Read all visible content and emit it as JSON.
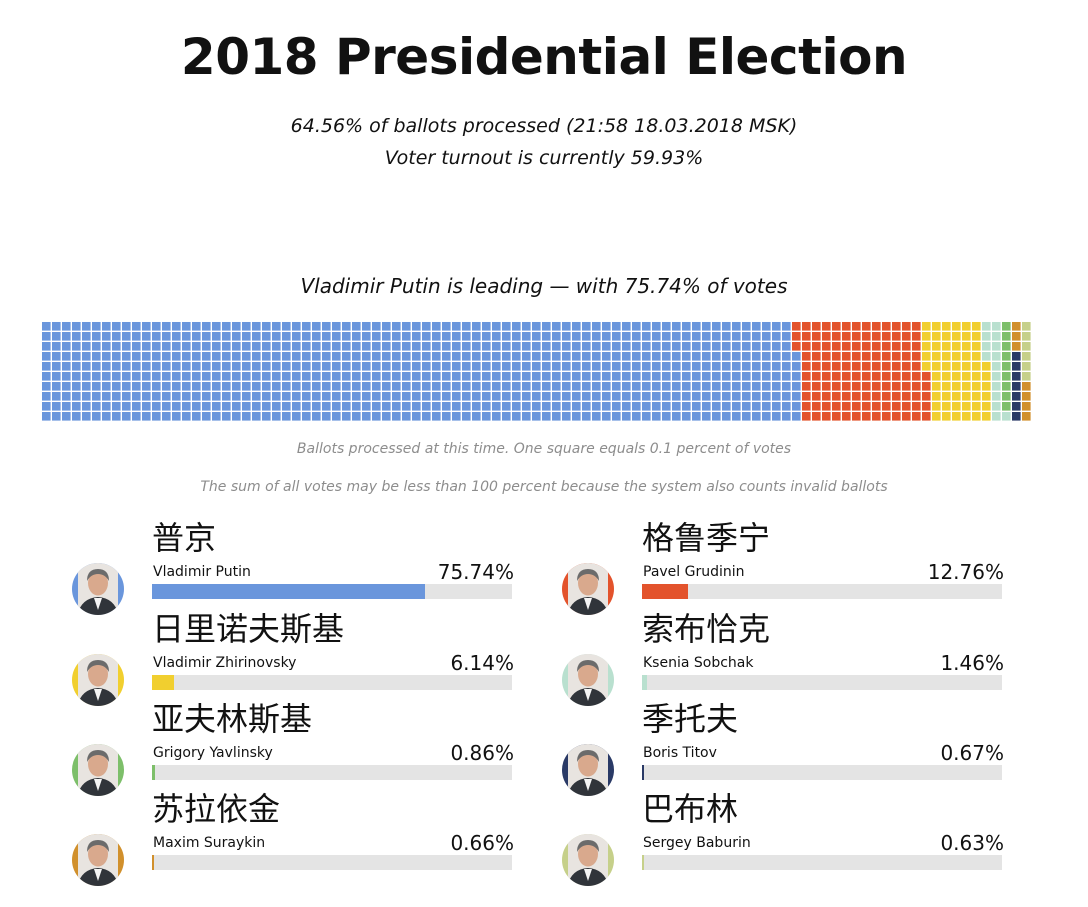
{
  "header": {
    "title": "2018 Presidential Election",
    "processed": "64.56% of ballots processed (21:58 18.03.2018 MSK)",
    "turnout": "Voter turnout is currently 59.93%"
  },
  "chart_data": {
    "type": "waffle",
    "leading_text": "Vladimir Putin is leading — with 75.74% of votes",
    "unit": "One square = 0.1% of votes",
    "note1": "Ballots processed at this time. One square equals 0.1 percent of votes",
    "note2": "The sum of all votes may be less than 100 percent because the system also counts invalid ballots",
    "series": [
      {
        "name_zh": "普京",
        "name": "Vladimir Putin",
        "value": 75.74,
        "label": "75.74%",
        "color": "#6a96dc"
      },
      {
        "name_zh": "格鲁季宁",
        "name": "Pavel Grudinin",
        "value": 12.76,
        "label": "12.76%",
        "color": "#e3532c"
      },
      {
        "name_zh": "日里诺夫斯基",
        "name": "Vladimir Zhirinovsky",
        "value": 6.14,
        "label": "6.14%",
        "color": "#f1cf2f"
      },
      {
        "name_zh": "索布恰克",
        "name": "Ksenia Sobchak",
        "value": 1.46,
        "label": "1.46%",
        "color": "#b9e0cf"
      },
      {
        "name_zh": "亚夫林斯基",
        "name": "Grigory Yavlinsky",
        "value": 0.86,
        "label": "0.86%",
        "color": "#7dbf6a"
      },
      {
        "name_zh": "季托夫",
        "name": "Boris Titov",
        "value": 0.67,
        "label": "0.67%",
        "color": "#2a3a66"
      },
      {
        "name_zh": "苏拉依金",
        "name": "Maxim Suraykin",
        "value": 0.66,
        "label": "0.66%",
        "color": "#d1902c"
      },
      {
        "name_zh": "巴布林",
        "name": "Sergey Baburin",
        "value": 0.63,
        "label": "0.63%",
        "color": "#c6d08a"
      }
    ]
  }
}
